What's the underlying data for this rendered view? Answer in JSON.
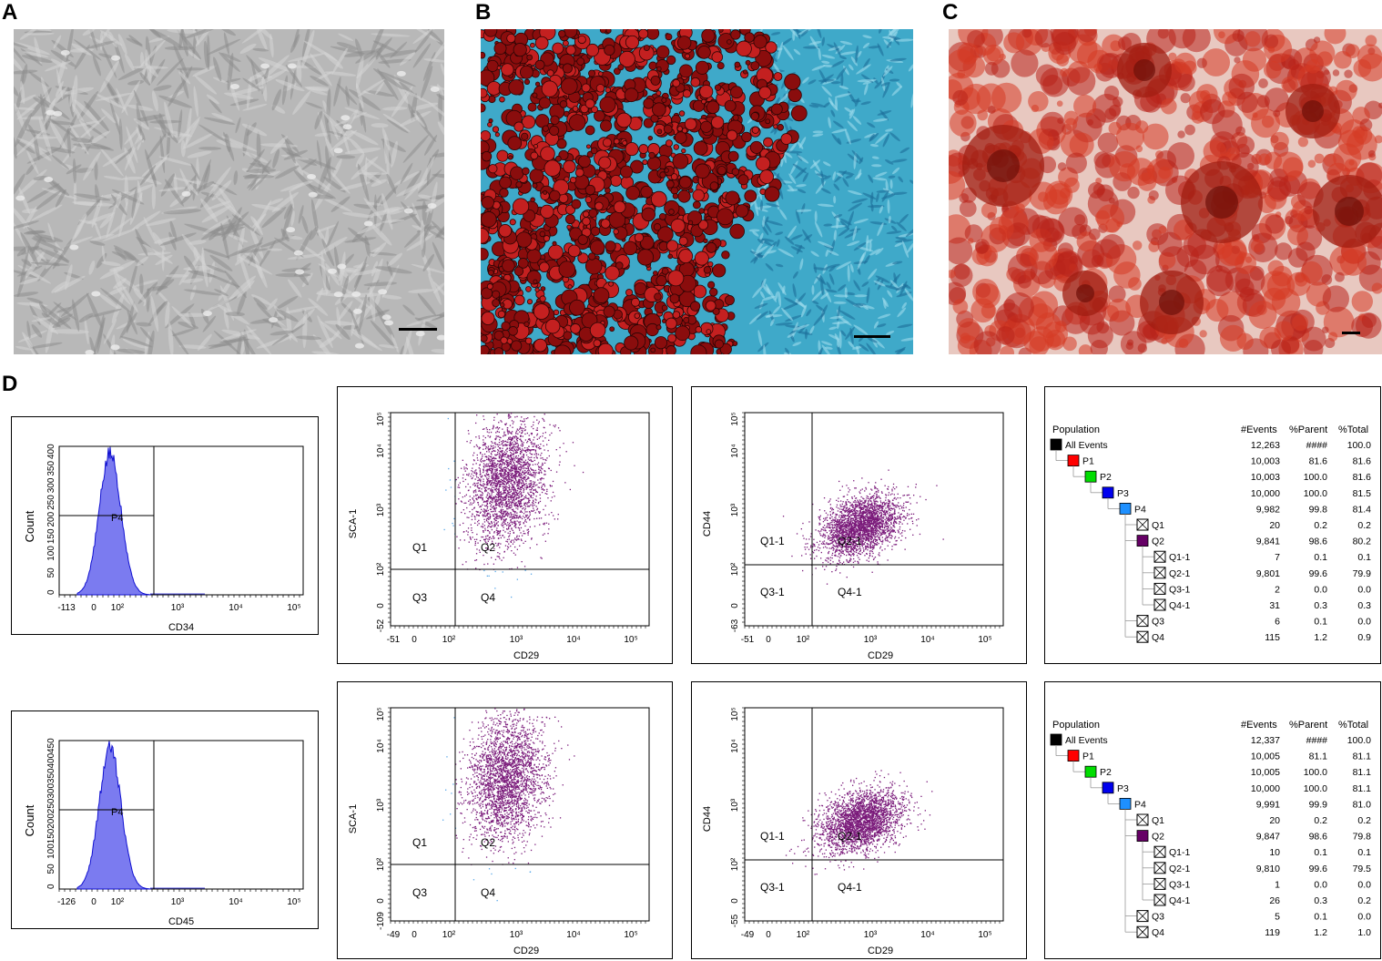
{
  "panel_labels": [
    "A",
    "B",
    "C",
    "D"
  ],
  "histograms": [
    {
      "axis_label": "CD34",
      "y_label": "Count",
      "y_ticks": [
        "0",
        "50",
        "100",
        "150",
        "200",
        "250",
        "300",
        "350",
        "400"
      ],
      "x_ticks": [
        "-113",
        "0",
        "10²",
        "10³",
        "10⁴",
        "10⁵"
      ],
      "gate_label": "P4"
    },
    {
      "axis_label": "CD45",
      "y_label": "Count",
      "y_ticks": [
        "0",
        "50",
        "100",
        "150",
        "200",
        "250",
        "300",
        "350",
        "400",
        "450"
      ],
      "x_ticks": [
        "-126",
        "0",
        "10²",
        "10³",
        "10⁴",
        "10⁵"
      ],
      "gate_label": "P4"
    }
  ],
  "scatter_plots": [
    {
      "x_label": "CD29",
      "y_label": "SCA-1",
      "x_ticks": [
        "-51",
        "0",
        "10²",
        "10³",
        "10⁴",
        "10⁵"
      ],
      "y_ticks": [
        "-52",
        "0",
        "10²",
        "10³",
        "10⁴",
        "10⁵"
      ],
      "quadrants": [
        "Q1",
        "Q2",
        "Q3",
        "Q4"
      ]
    },
    {
      "x_label": "CD29",
      "y_label": "CD44",
      "x_ticks": [
        "-51",
        "0",
        "10²",
        "10³",
        "10⁴",
        "10⁵"
      ],
      "y_ticks": [
        "-63",
        "0",
        "10²",
        "10³",
        "10⁴",
        "10⁵"
      ],
      "quadrants": [
        "Q1-1",
        "Q2-1",
        "Q3-1",
        "Q4-1"
      ]
    },
    {
      "x_label": "CD29",
      "y_label": "SCA-1",
      "x_ticks": [
        "-49",
        "0",
        "10²",
        "10³",
        "10⁴",
        "10⁵"
      ],
      "y_ticks": [
        "-109",
        "0",
        "10²",
        "10³",
        "10⁴",
        "10⁵"
      ],
      "quadrants": [
        "Q1",
        "Q2",
        "Q3",
        "Q4"
      ]
    },
    {
      "x_label": "CD29",
      "y_label": "CD44",
      "x_ticks": [
        "-49",
        "0",
        "10²",
        "10³",
        "10⁴",
        "10⁵"
      ],
      "y_ticks": [
        "-55",
        "0",
        "10²",
        "10³",
        "10⁴",
        "10⁵"
      ],
      "quadrants": [
        "Q1-1",
        "Q2-1",
        "Q3-1",
        "Q4-1"
      ]
    }
  ],
  "population_tables": [
    {
      "headers": [
        "Population",
        "#Events",
        "%Parent",
        "%Total"
      ],
      "rows": [
        {
          "name": "All Events",
          "level": 0,
          "swatch": "#000000",
          "events": "12,263",
          "parent": "####",
          "total": "100.0"
        },
        {
          "name": "P1",
          "level": 1,
          "swatch": "#ff0000",
          "events": "10,003",
          "parent": "81.6",
          "total": "81.6"
        },
        {
          "name": "P2",
          "level": 2,
          "swatch": "#00dd00",
          "events": "10,003",
          "parent": "100.0",
          "total": "81.6"
        },
        {
          "name": "P3",
          "level": 3,
          "swatch": "#0000ee",
          "events": "10,000",
          "parent": "100.0",
          "total": "81.5"
        },
        {
          "name": "P4",
          "level": 4,
          "swatch": "#1e90ff",
          "events": "9,982",
          "parent": "99.8",
          "total": "81.4"
        },
        {
          "name": "Q1",
          "level": 5,
          "swatch": "x",
          "events": "20",
          "parent": "0.2",
          "total": "0.2"
        },
        {
          "name": "Q2",
          "level": 5,
          "swatch": "#660066",
          "events": "9,841",
          "parent": "98.6",
          "total": "80.2"
        },
        {
          "name": "Q1-1",
          "level": 6,
          "swatch": "x",
          "events": "7",
          "parent": "0.1",
          "total": "0.1"
        },
        {
          "name": "Q2-1",
          "level": 6,
          "swatch": "x",
          "events": "9,801",
          "parent": "99.6",
          "total": "79.9"
        },
        {
          "name": "Q3-1",
          "level": 6,
          "swatch": "x",
          "events": "2",
          "parent": "0.0",
          "total": "0.0"
        },
        {
          "name": "Q4-1",
          "level": 6,
          "swatch": "x",
          "events": "31",
          "parent": "0.3",
          "total": "0.3"
        },
        {
          "name": "Q3",
          "level": 5,
          "swatch": "x",
          "events": "6",
          "parent": "0.1",
          "total": "0.0"
        },
        {
          "name": "Q4",
          "level": 5,
          "swatch": "x",
          "events": "115",
          "parent": "1.2",
          "total": "0.9"
        }
      ]
    },
    {
      "headers": [
        "Population",
        "#Events",
        "%Parent",
        "%Total"
      ],
      "rows": [
        {
          "name": "All Events",
          "level": 0,
          "swatch": "#000000",
          "events": "12,337",
          "parent": "####",
          "total": "100.0"
        },
        {
          "name": "P1",
          "level": 1,
          "swatch": "#ff0000",
          "events": "10,005",
          "parent": "81.1",
          "total": "81.1"
        },
        {
          "name": "P2",
          "level": 2,
          "swatch": "#00dd00",
          "events": "10,005",
          "parent": "100.0",
          "total": "81.1"
        },
        {
          "name": "P3",
          "level": 3,
          "swatch": "#0000ee",
          "events": "10,000",
          "parent": "100.0",
          "total": "81.1"
        },
        {
          "name": "P4",
          "level": 4,
          "swatch": "#1e90ff",
          "events": "9,991",
          "parent": "99.9",
          "total": "81.0"
        },
        {
          "name": "Q1",
          "level": 5,
          "swatch": "x",
          "events": "20",
          "parent": "0.2",
          "total": "0.2"
        },
        {
          "name": "Q2",
          "level": 5,
          "swatch": "#660066",
          "events": "9,847",
          "parent": "98.6",
          "total": "79.8"
        },
        {
          "name": "Q1-1",
          "level": 6,
          "swatch": "x",
          "events": "10",
          "parent": "0.1",
          "total": "0.1"
        },
        {
          "name": "Q2-1",
          "level": 6,
          "swatch": "x",
          "events": "9,810",
          "parent": "99.6",
          "total": "79.5"
        },
        {
          "name": "Q3-1",
          "level": 6,
          "swatch": "x",
          "events": "1",
          "parent": "0.0",
          "total": "0.0"
        },
        {
          "name": "Q4-1",
          "level": 6,
          "swatch": "x",
          "events": "26",
          "parent": "0.3",
          "total": "0.2"
        },
        {
          "name": "Q3",
          "level": 5,
          "swatch": "x",
          "events": "5",
          "parent": "0.1",
          "total": "0.0"
        },
        {
          "name": "Q4",
          "level": 5,
          "swatch": "x",
          "events": "119",
          "parent": "1.2",
          "total": "1.0"
        }
      ]
    }
  ],
  "colors": {
    "photo_a": "#b8b8b8",
    "photo_b_red": "#8a0d0d",
    "photo_b_blue": "#3fa9c9",
    "photo_c_red": "#d63a25",
    "histogram_fill": "#7b7bf0",
    "histogram_line": "#1010d0",
    "dot_main": "#7a1a7a",
    "dot_outlier": "#5aa8e8"
  }
}
